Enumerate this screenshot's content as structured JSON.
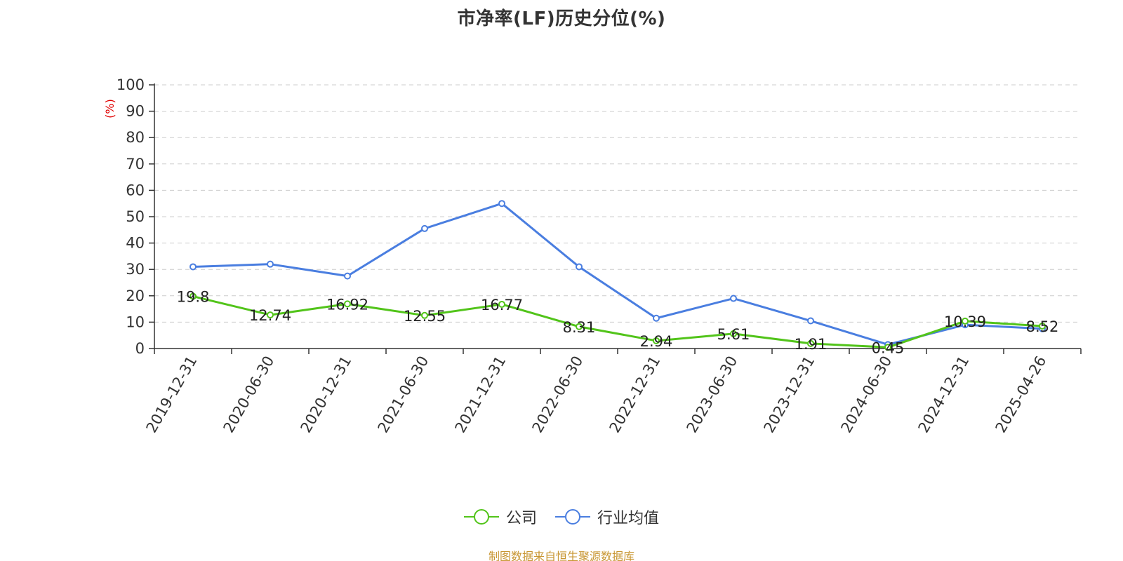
{
  "title": "市净率(LF)历史分位(%)",
  "source_note": "制图数据来自恒生聚源数据库",
  "colors": {
    "company": "#52c41a",
    "industry": "#4a7ee0",
    "ylabel": "#e00000",
    "grid": "#cccccc",
    "axis": "#333333",
    "source": "#c89632"
  },
  "legend": [
    {
      "name": "公司",
      "color": "#52c41a"
    },
    {
      "name": "行业均值",
      "color": "#4a7ee0"
    }
  ],
  "chart_data": {
    "type": "line",
    "title": "市净率(LF)历史分位(%)",
    "xlabel": "",
    "ylabel": "(%)",
    "ylim": [
      0,
      100
    ],
    "yticks": [
      0,
      10,
      20,
      30,
      40,
      50,
      60,
      70,
      80,
      90,
      100
    ],
    "grid": true,
    "legend_position": "bottom-center",
    "categories": [
      "2019-12-31",
      "2020-06-30",
      "2020-12-31",
      "2021-06-30",
      "2021-12-31",
      "2022-06-30",
      "2022-12-31",
      "2023-06-30",
      "2023-12-31",
      "2024-06-30",
      "2024-12-31",
      "2025-04-26"
    ],
    "series": [
      {
        "name": "公司",
        "color": "#52c41a",
        "values": [
          19.8,
          12.74,
          16.92,
          12.55,
          16.77,
          8.31,
          2.94,
          5.61,
          1.91,
          0.45,
          10.39,
          8.52
        ],
        "labels": [
          "19.8",
          "12.74",
          "16.92",
          "12.55",
          "16.77",
          "8.31",
          "2.94",
          "5.61",
          "1.91",
          "0.45",
          "10.39",
          "8.52"
        ]
      },
      {
        "name": "行业均值",
        "color": "#4a7ee0",
        "values": [
          31.0,
          32.0,
          27.5,
          45.5,
          55.0,
          31.0,
          11.5,
          19.0,
          10.5,
          1.5,
          9.0,
          7.5
        ]
      }
    ]
  }
}
